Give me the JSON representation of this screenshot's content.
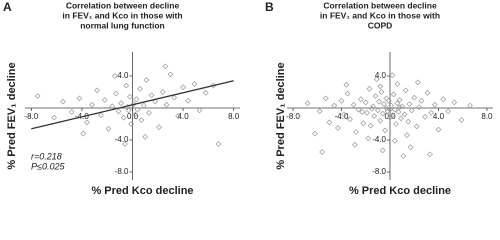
{
  "chart_data": [
    {
      "type": "scatter",
      "panel_label": "A",
      "title": [
        "Correlation between decline",
        "in FEV₁ and Kco in those with",
        "normal lung function"
      ],
      "x_label": "% Pred Kco decline",
      "y_label": "% Pred FEV₁ decline",
      "annotations": [
        "r=0.218",
        "P≤0.025"
      ],
      "xlim": [
        -8.5,
        8.5
      ],
      "ylim": [
        -9,
        7
      ],
      "xticks": [
        {
          "value": -8,
          "label": "-8.0"
        },
        {
          "value": -4,
          "label": "-4.0"
        },
        {
          "value": 0,
          "label": "0.0"
        },
        {
          "value": 4,
          "label": "4.0"
        },
        {
          "value": 8,
          "label": "8.0"
        }
      ],
      "yticks": [
        {
          "value": -8,
          "label": "-8.0"
        },
        {
          "value": -4,
          "label": "-4.0"
        },
        {
          "value": 4,
          "label": "4.0"
        }
      ],
      "color": "#9a9a9a",
      "trend_line": {
        "x": [
          -8,
          8
        ],
        "y": [
          -2.6,
          3.4
        ],
        "color": "#333333"
      },
      "x": [
        -7.5,
        -5.5,
        -4.8,
        -4.2,
        -3.6,
        -3.2,
        -2.8,
        -2.5,
        -2.2,
        -1.9,
        -1.6,
        -1.3,
        -1.1,
        -0.9,
        -0.7,
        -0.5,
        -0.4,
        -0.3,
        -0.2,
        -0.1,
        0.1,
        0.2,
        0.3,
        0.4,
        0.6,
        0.7,
        0.9,
        1.1,
        1.3,
        1.5,
        1.8,
        2.1,
        2.4,
        2.7,
        3.0,
        3.3,
        3.6,
        4.0,
        4.4,
        4.9,
        5.3,
        5.8,
        6.4,
        -6.2,
        -3.9,
        1.0,
        -0.6,
        2.6,
        6.8,
        -1.4
      ],
      "y": [
        1.5,
        0.8,
        -0.5,
        1.2,
        -1.8,
        0.4,
        2.2,
        -0.9,
        1.0,
        -2.6,
        0.2,
        1.8,
        -0.4,
        0.6,
        -1.2,
        2.8,
        0.1,
        -0.3,
        1.4,
        -2.0,
        0.5,
        -0.8,
        1.1,
        -0.2,
        2.4,
        -1.5,
        0.3,
        3.5,
        -0.6,
        1.6,
        0.8,
        -2.4,
        2.0,
        0.4,
        4.2,
        1.3,
        -1.0,
        2.6,
        0.9,
        3.0,
        -0.3,
        1.9,
        2.8,
        -1.2,
        -3.2,
        -3.6,
        -4.5,
        5.2,
        -4.5,
        4.0
      ]
    },
    {
      "type": "scatter",
      "panel_label": "B",
      "title": [
        "Correlation between decline",
        "in FEV₁ and Kco in those with",
        "COPD"
      ],
      "x_label": "% Pred Kco decline",
      "y_label": "% Pred FEV₁ decline",
      "xlim": [
        -8.5,
        8.5
      ],
      "ylim": [
        -9,
        7
      ],
      "xticks": [
        {
          "value": -8,
          "label": "-8.0"
        },
        {
          "value": -4,
          "label": "-4.0"
        },
        {
          "value": 0,
          "label": "0.0"
        },
        {
          "value": 4,
          "label": "4.0"
        },
        {
          "value": 8,
          "label": "8.0"
        }
      ],
      "yticks": [
        {
          "value": -8,
          "label": "-8.0"
        },
        {
          "value": -4,
          "label": "-4.0"
        },
        {
          "value": 4,
          "label": "4.0"
        }
      ],
      "color": "#9a9a9a",
      "x": [
        -7.6,
        -6.8,
        -6.2,
        -5.8,
        -5.3,
        -5.0,
        -4.6,
        -4.3,
        -4.0,
        -3.8,
        -3.5,
        -3.3,
        -3.0,
        -2.8,
        -2.6,
        -2.4,
        -2.2,
        -2.0,
        -1.9,
        -1.7,
        -1.6,
        -1.4,
        -1.3,
        -1.2,
        -1.0,
        -0.9,
        -0.8,
        -0.7,
        -0.6,
        -0.5,
        -0.4,
        -0.3,
        -0.2,
        -0.1,
        0.0,
        0.1,
        0.2,
        0.3,
        0.4,
        0.5,
        0.6,
        0.7,
        0.8,
        0.9,
        1.0,
        1.2,
        1.3,
        1.5,
        1.6,
        1.8,
        2.0,
        2.2,
        2.4,
        2.6,
        2.9,
        3.1,
        3.4,
        3.7,
        4.0,
        4.4,
        4.8,
        5.3,
        5.9,
        6.6,
        -2.9,
        -1.8,
        -0.6,
        0.4,
        1.4,
        2.3,
        -3.6,
        -1.1,
        0.2,
        1.1,
        -0.3,
        0.8,
        -1.5,
        0.0,
        -2.3,
        1.7,
        -5.6,
        3.3,
        -0.8,
        0.6
      ],
      "y": [
        -1.0,
        0.6,
        -3.2,
        -0.4,
        1.2,
        -1.8,
        0.3,
        -2.5,
        0.9,
        -0.8,
        1.8,
        -1.4,
        0.4,
        -3.0,
        -0.2,
        1.1,
        -1.9,
        0.7,
        -0.6,
        2.4,
        -2.2,
        0.2,
        -1.0,
        1.5,
        -0.3,
        0.8,
        -1.6,
        2.0,
        -0.7,
        0.5,
        -2.8,
        1.2,
        -0.4,
        0.9,
        -1.2,
        0.3,
        -0.9,
        1.7,
        -0.2,
        -2.0,
        0.6,
        -0.5,
        1.0,
        -1.3,
        0.2,
        -0.8,
        2.2,
        -1.7,
        0.5,
        -0.3,
        1.3,
        -2.3,
        0.1,
        0.9,
        -1.1,
        1.9,
        -0.6,
        0.4,
        -2.7,
        1.1,
        -0.4,
        0.7,
        -1.5,
        0.3,
        -4.6,
        -3.8,
        -5.3,
        -4.1,
        -3.4,
        3.2,
        2.9,
        3.6,
        4.1,
        -6.0,
        0.0,
        0.1,
        -0.1,
        -0.2,
        -0.5,
        -4.9,
        -5.5,
        -5.8,
        2.7,
        3.0
      ]
    }
  ]
}
